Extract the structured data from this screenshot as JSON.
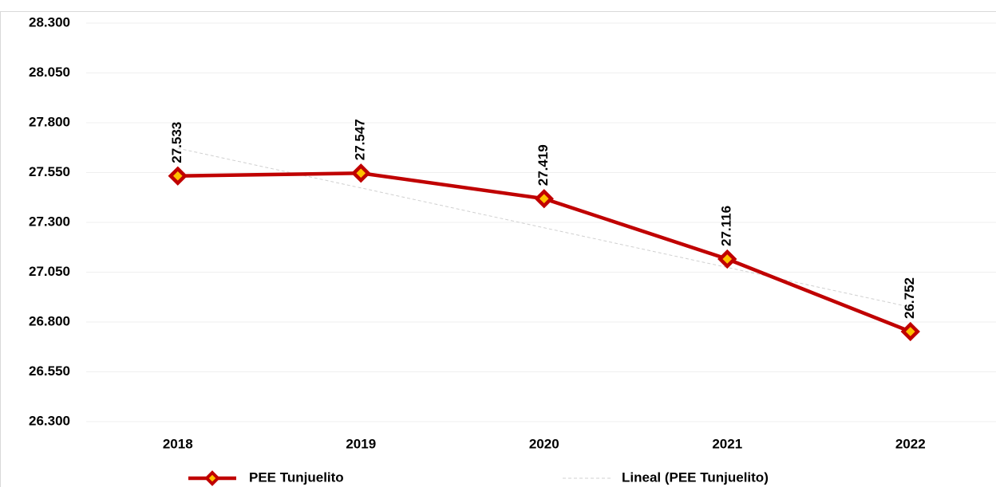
{
  "chart_data": {
    "type": "line",
    "categories": [
      "2018",
      "2019",
      "2020",
      "2021",
      "2022"
    ],
    "series": [
      {
        "name": "PEE Tunjuelito",
        "color": "#c00000",
        "marker_fill": "#ffc000",
        "values": [
          27533,
          27547,
          27419,
          27116,
          26752
        ],
        "value_labels": [
          "27.533",
          "27.547",
          "27.419",
          "27.116",
          "26.752"
        ]
      },
      {
        "name": "Lineal (PEE Tunjuelito)",
        "color": "#d0d0d0",
        "dashed": true,
        "values": [
          27672,
          27473,
          27273,
          27074,
          26875
        ]
      }
    ],
    "ylim": [
      26300,
      28300
    ],
    "yticks": [
      {
        "value": 26300,
        "label": "26.300"
      },
      {
        "value": 26550,
        "label": "26.550"
      },
      {
        "value": 26800,
        "label": "26.800"
      },
      {
        "value": 27050,
        "label": "27.050"
      },
      {
        "value": 27300,
        "label": "27.300"
      },
      {
        "value": 27550,
        "label": "27.550"
      },
      {
        "value": 27800,
        "label": "27.800"
      },
      {
        "value": 28050,
        "label": "28.050"
      },
      {
        "value": 28300,
        "label": "28.300"
      }
    ],
    "grid": true,
    "legend": "bottom"
  }
}
